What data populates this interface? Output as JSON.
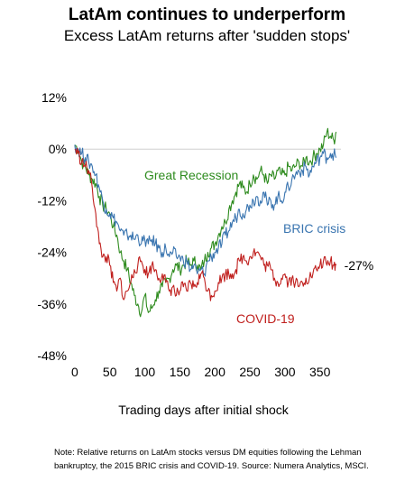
{
  "chart_data": {
    "type": "line",
    "title": "LatAm continues to underperform",
    "subtitle": "Excess LatAm returns after 'sudden stops'",
    "xlabel": "Trading days after initial shock",
    "ylabel": "",
    "xlim": [
      -5,
      380
    ],
    "ylim": [
      -48,
      12
    ],
    "x_ticks": [
      0,
      50,
      100,
      150,
      200,
      250,
      300,
      350
    ],
    "y_ticks": [
      12,
      0,
      -12,
      -24,
      -36,
      -48
    ],
    "y_tick_labels": [
      "12%",
      "0%",
      "-12%",
      "-24%",
      "-36%",
      "-48%"
    ],
    "zero_line": true,
    "grid": false,
    "legend": "inline labels",
    "series": [
      {
        "name": "Great Recession",
        "color": "#2e8b1e",
        "points": [
          [
            0,
            1
          ],
          [
            5,
            0
          ],
          [
            10,
            -3
          ],
          [
            15,
            -4
          ],
          [
            20,
            -6
          ],
          [
            25,
            -7
          ],
          [
            30,
            -8
          ],
          [
            35,
            -11
          ],
          [
            40,
            -13
          ],
          [
            45,
            -14
          ],
          [
            50,
            -15
          ],
          [
            55,
            -18
          ],
          [
            60,
            -20
          ],
          [
            65,
            -24
          ],
          [
            70,
            -26
          ],
          [
            75,
            -28
          ],
          [
            80,
            -31
          ],
          [
            85,
            -34
          ],
          [
            90,
            -36
          ],
          [
            95,
            -38
          ],
          [
            100,
            -34
          ],
          [
            105,
            -38
          ],
          [
            110,
            -37
          ],
          [
            115,
            -35
          ],
          [
            120,
            -33
          ],
          [
            125,
            -32
          ],
          [
            130,
            -31
          ],
          [
            135,
            -30
          ],
          [
            140,
            -28
          ],
          [
            145,
            -27
          ],
          [
            150,
            -28
          ],
          [
            155,
            -27
          ],
          [
            160,
            -26
          ],
          [
            165,
            -27
          ],
          [
            170,
            -26
          ],
          [
            175,
            -27
          ],
          [
            180,
            -28
          ],
          [
            185,
            -26
          ],
          [
            190,
            -24
          ],
          [
            195,
            -23
          ],
          [
            200,
            -22
          ],
          [
            205,
            -20
          ],
          [
            210,
            -18
          ],
          [
            215,
            -17
          ],
          [
            220,
            -14
          ],
          [
            225,
            -12
          ],
          [
            230,
            -10
          ],
          [
            235,
            -8
          ],
          [
            240,
            -9
          ],
          [
            245,
            -10
          ],
          [
            250,
            -8
          ],
          [
            255,
            -6
          ],
          [
            260,
            -7
          ],
          [
            265,
            -5
          ],
          [
            270,
            -6
          ],
          [
            275,
            -8
          ],
          [
            280,
            -6
          ],
          [
            285,
            -7
          ],
          [
            290,
            -5
          ],
          [
            295,
            -6
          ],
          [
            300,
            -6
          ],
          [
            305,
            -4
          ],
          [
            310,
            -5
          ],
          [
            315,
            -4
          ],
          [
            320,
            -3
          ],
          [
            325,
            -4
          ],
          [
            330,
            -2
          ],
          [
            335,
            -3
          ],
          [
            340,
            -2
          ],
          [
            345,
            -1
          ],
          [
            350,
            0
          ],
          [
            355,
            1
          ],
          [
            360,
            4
          ],
          [
            365,
            3
          ],
          [
            370,
            2
          ],
          [
            373,
            4
          ]
        ]
      },
      {
        "name": "BRIC crisis",
        "color": "#3a75b0",
        "points": [
          [
            0,
            1
          ],
          [
            5,
            0
          ],
          [
            10,
            -1
          ],
          [
            15,
            -2
          ],
          [
            20,
            -3
          ],
          [
            25,
            -4
          ],
          [
            30,
            -6
          ],
          [
            35,
            -9
          ],
          [
            40,
            -12
          ],
          [
            45,
            -14
          ],
          [
            50,
            -15
          ],
          [
            55,
            -16
          ],
          [
            60,
            -17
          ],
          [
            65,
            -19
          ],
          [
            70,
            -20
          ],
          [
            75,
            -20
          ],
          [
            80,
            -20
          ],
          [
            85,
            -21
          ],
          [
            90,
            -20
          ],
          [
            95,
            -22
          ],
          [
            100,
            -21
          ],
          [
            105,
            -22
          ],
          [
            110,
            -21
          ],
          [
            115,
            -22
          ],
          [
            120,
            -23
          ],
          [
            125,
            -24
          ],
          [
            130,
            -23
          ],
          [
            135,
            -25
          ],
          [
            140,
            -24
          ],
          [
            145,
            -25
          ],
          [
            150,
            -25
          ],
          [
            155,
            -26
          ],
          [
            160,
            -26
          ],
          [
            165,
            -28
          ],
          [
            170,
            -27
          ],
          [
            175,
            -29
          ],
          [
            180,
            -28
          ],
          [
            185,
            -29
          ],
          [
            190,
            -26
          ],
          [
            195,
            -25
          ],
          [
            200,
            -24
          ],
          [
            205,
            -23
          ],
          [
            210,
            -22
          ],
          [
            215,
            -20
          ],
          [
            220,
            -19
          ],
          [
            225,
            -17
          ],
          [
            230,
            -16
          ],
          [
            235,
            -14
          ],
          [
            240,
            -15
          ],
          [
            245,
            -14
          ],
          [
            250,
            -13
          ],
          [
            255,
            -12
          ],
          [
            260,
            -11
          ],
          [
            265,
            -12
          ],
          [
            270,
            -10
          ],
          [
            275,
            -13
          ],
          [
            280,
            -12
          ],
          [
            285,
            -13
          ],
          [
            290,
            -11
          ],
          [
            295,
            -12
          ],
          [
            300,
            -10
          ],
          [
            305,
            -9
          ],
          [
            310,
            -7
          ],
          [
            315,
            -6
          ],
          [
            320,
            -5
          ],
          [
            325,
            -5
          ],
          [
            330,
            -4
          ],
          [
            335,
            -6
          ],
          [
            340,
            -4
          ],
          [
            345,
            -3
          ],
          [
            350,
            -2
          ],
          [
            355,
            -1
          ],
          [
            360,
            -2
          ],
          [
            365,
            -1
          ],
          [
            370,
            -1
          ],
          [
            373,
            -2
          ]
        ]
      },
      {
        "name": "COVID-19",
        "color": "#c0201e",
        "end_label": "-27%",
        "points": [
          [
            0,
            0
          ],
          [
            5,
            -1
          ],
          [
            10,
            -3
          ],
          [
            15,
            -4
          ],
          [
            20,
            -5
          ],
          [
            25,
            -9
          ],
          [
            30,
            -15
          ],
          [
            35,
            -22
          ],
          [
            40,
            -25
          ],
          [
            45,
            -25
          ],
          [
            50,
            -27
          ],
          [
            55,
            -31
          ],
          [
            60,
            -33
          ],
          [
            65,
            -30
          ],
          [
            70,
            -35
          ],
          [
            75,
            -33
          ],
          [
            80,
            -31
          ],
          [
            85,
            -28
          ],
          [
            90,
            -27
          ],
          [
            95,
            -26
          ],
          [
            100,
            -28
          ],
          [
            105,
            -29
          ],
          [
            110,
            -27
          ],
          [
            115,
            -28
          ],
          [
            120,
            -30
          ],
          [
            125,
            -29
          ],
          [
            130,
            -31
          ],
          [
            135,
            -33
          ],
          [
            140,
            -32
          ],
          [
            145,
            -34
          ],
          [
            150,
            -33
          ],
          [
            155,
            -32
          ],
          [
            160,
            -33
          ],
          [
            165,
            -31
          ],
          [
            170,
            -32
          ],
          [
            175,
            -31
          ],
          [
            180,
            -29
          ],
          [
            185,
            -30
          ],
          [
            190,
            -33
          ],
          [
            195,
            -34
          ],
          [
            200,
            -33
          ],
          [
            205,
            -31
          ],
          [
            210,
            -30
          ],
          [
            215,
            -29
          ],
          [
            220,
            -29
          ],
          [
            225,
            -29
          ],
          [
            230,
            -28
          ],
          [
            235,
            -26
          ],
          [
            240,
            -25
          ],
          [
            245,
            -26
          ],
          [
            250,
            -25
          ],
          [
            255,
            -24
          ],
          [
            260,
            -24
          ],
          [
            265,
            -25
          ],
          [
            270,
            -27
          ],
          [
            275,
            -27
          ],
          [
            280,
            -28
          ],
          [
            285,
            -30
          ],
          [
            290,
            -31
          ],
          [
            295,
            -30
          ],
          [
            300,
            -29
          ],
          [
            305,
            -31
          ],
          [
            310,
            -30
          ],
          [
            315,
            -31
          ],
          [
            320,
            -32
          ],
          [
            325,
            -31
          ],
          [
            330,
            -30
          ],
          [
            335,
            -30
          ],
          [
            340,
            -29
          ],
          [
            345,
            -28
          ],
          [
            350,
            -27
          ],
          [
            355,
            -26
          ],
          [
            360,
            -27
          ],
          [
            365,
            -26
          ],
          [
            370,
            -27
          ],
          [
            373,
            -27
          ]
        ]
      }
    ],
    "note": "Note: Relative returns on LatAm stocks versus DM equities  following the Lehman bankruptcy, the 2015 BRIC crisis and COVID-19. Source: Numera Analytics, MSCI."
  }
}
